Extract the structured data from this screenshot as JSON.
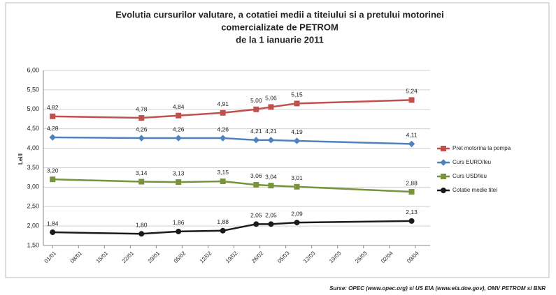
{
  "chart_data": {
    "type": "line",
    "title": [
      "Evolutia cursurilor valutare, a cotatiei medii a titeiului si a pretului motorinei",
      "comercializate de PETROM",
      "de la 1 ianuarie 2011"
    ],
    "y_label": "Lei/l",
    "source": "Surse: OPEC (www.opec.org) si US EIA (www.eia.doe.gov), OMV PETROM si BNR",
    "x": [
      0,
      24,
      34,
      46,
      55,
      59,
      66,
      97
    ],
    "xlim": [
      -2.5,
      102
    ],
    "xticks": [
      {
        "value": 0,
        "label": "01/01"
      },
      {
        "value": 7,
        "label": "08/01"
      },
      {
        "value": 14,
        "label": "15/01"
      },
      {
        "value": 21,
        "label": "22/01"
      },
      {
        "value": 28,
        "label": "29/01"
      },
      {
        "value": 35,
        "label": "05/02"
      },
      {
        "value": 42,
        "label": "12/02"
      },
      {
        "value": 49,
        "label": "19/02"
      },
      {
        "value": 56,
        "label": "26/02"
      },
      {
        "value": 63,
        "label": "05/03"
      },
      {
        "value": 70,
        "label": "12/03"
      },
      {
        "value": 77,
        "label": "19/03"
      },
      {
        "value": 84,
        "label": "26/03"
      },
      {
        "value": 91,
        "label": "02/04"
      },
      {
        "value": 98,
        "label": "09/04"
      }
    ],
    "ylim": [
      1.5,
      6
    ],
    "yticks": [
      {
        "value": 1.5,
        "label": "1,50"
      },
      {
        "value": 2,
        "label": "2,00"
      },
      {
        "value": 2.5,
        "label": "2,50"
      },
      {
        "value": 3,
        "label": "3,00"
      },
      {
        "value": 3.5,
        "label": "3,50"
      },
      {
        "value": 4,
        "label": "4,00"
      },
      {
        "value": 4.5,
        "label": "4,50"
      },
      {
        "value": 5,
        "label": "5,00"
      },
      {
        "value": 5.5,
        "label": "5,50"
      },
      {
        "value": 6,
        "label": "6,00"
      }
    ],
    "grid": true,
    "legend": "right",
    "series": [
      {
        "name": "Pret motorina la pompa",
        "color": "#c0504d",
        "marker": "square",
        "values": [
          4.82,
          4.78,
          4.84,
          4.91,
          5.0,
          5.06,
          5.15,
          5.24
        ],
        "value_labels": [
          "4,82",
          "4,78",
          "4,84",
          "4,91",
          "5,00",
          "5,06",
          "5,15",
          "5,24"
        ]
      },
      {
        "name": "Curs EURO/leu",
        "color": "#4f81bd",
        "marker": "diamond",
        "values": [
          4.28,
          4.26,
          4.26,
          4.26,
          4.21,
          4.21,
          4.19,
          4.11
        ],
        "value_labels": [
          "4,28",
          "4,26",
          "4,26",
          "4,26",
          "4,21",
          "4,21",
          "4,19",
          "4,11"
        ]
      },
      {
        "name": "Curs USD/leu",
        "color": "#77933c",
        "marker": "square",
        "values": [
          3.2,
          3.14,
          3.13,
          3.15,
          3.06,
          3.04,
          3.01,
          2.88
        ],
        "value_labels": [
          "3,20",
          "3,14",
          "3,13",
          "3,15",
          "3,06",
          "3,04",
          "3,01",
          "2,88"
        ]
      },
      {
        "name": "Cotatie medie titei",
        "color": "#1a1a1a",
        "marker": "circle",
        "values": [
          1.84,
          1.8,
          1.86,
          1.88,
          2.05,
          2.05,
          2.09,
          2.13
        ],
        "value_labels": [
          "1,84",
          "1,80",
          "1,86",
          "1,88",
          "2,05",
          "2,05",
          "2,09",
          "2,13"
        ]
      }
    ]
  }
}
